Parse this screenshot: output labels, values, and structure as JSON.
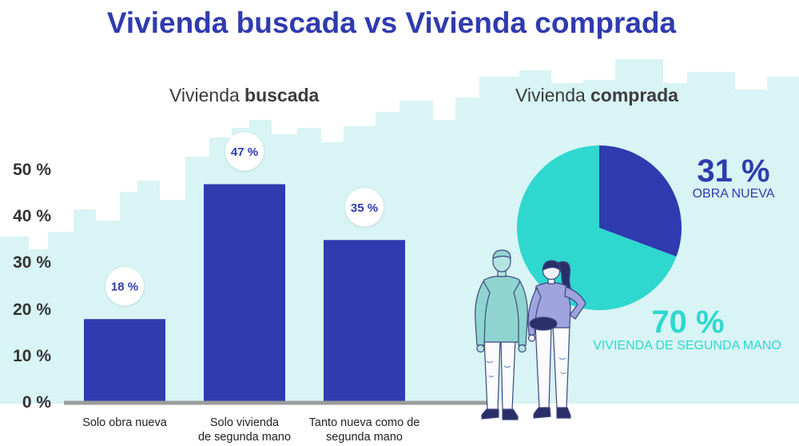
{
  "title": "Vivienda buscada vs Vivienda comprada",
  "colors": {
    "primary": "#2f3bae",
    "accent": "#2ed8ce",
    "skyline": "#d8f4f4",
    "axis_line": "#9c9c9c",
    "label_bubble": "#ffffff",
    "text_dark": "#333333"
  },
  "chart_data": [
    {
      "type": "bar",
      "title_regular": "Vivienda",
      "title_bold": "buscada",
      "categories": [
        "Solo obra nueva",
        "Solo vivienda\nde segunda mano",
        "Tanto nueva como de\nsegunda mano"
      ],
      "values": [
        18,
        47,
        35
      ],
      "data_labels": [
        "18 %",
        "47 %",
        "35 %"
      ],
      "yticks": [
        0,
        10,
        20,
        30,
        40,
        50
      ],
      "ytick_labels": [
        "0 %",
        "10 %",
        "20 %",
        "30 %",
        "40 %",
        "50 %"
      ],
      "ylim": [
        0,
        50
      ],
      "grid": false
    },
    {
      "type": "pie",
      "title_regular": "Vivienda",
      "title_bold": "comprada",
      "slices": [
        {
          "label": "OBRA NUEVA",
          "value": 31,
          "value_label": "31 %",
          "color": "#2f3bae"
        },
        {
          "label": "VIVIENDA DE SEGUNDA MANO",
          "value": 70,
          "value_label": "70 %",
          "color": "#2ed8ce"
        }
      ]
    }
  ]
}
